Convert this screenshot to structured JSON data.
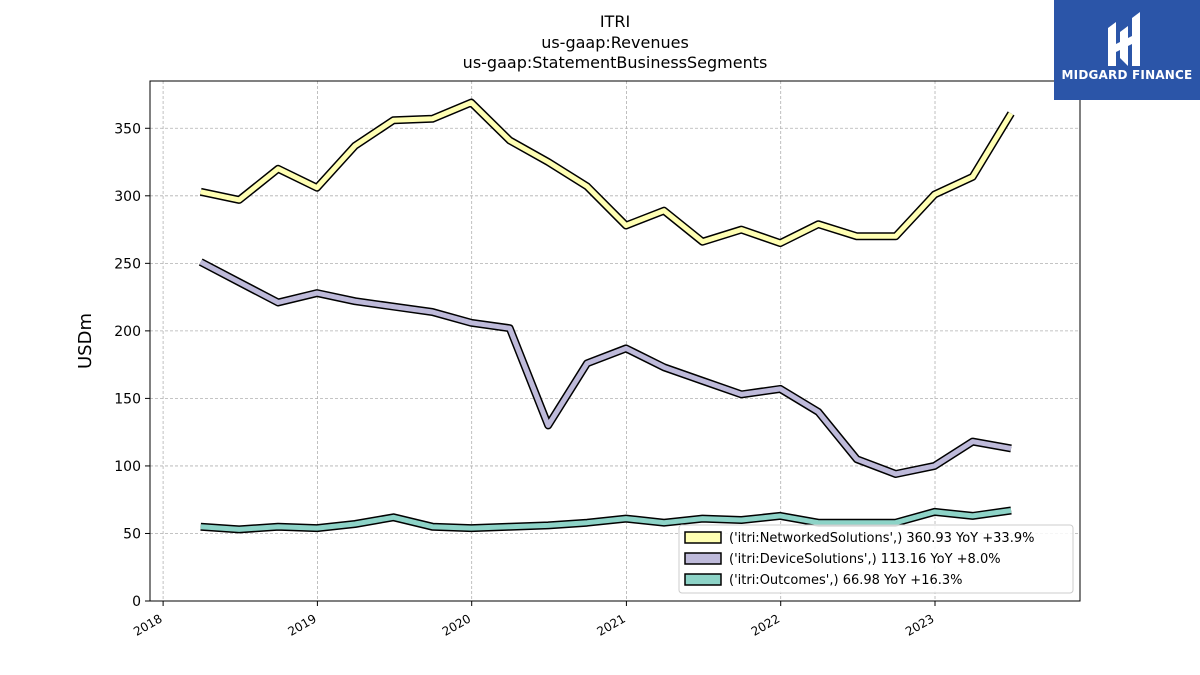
{
  "chart_data": {
    "type": "line",
    "title": [
      "ITRI",
      "us-gaap:Revenues",
      "us-gaap:StatementBusinessSegments"
    ],
    "xlabel": "",
    "ylabel": "USDm",
    "ylim": [
      0,
      385
    ],
    "xlim": [
      "2017-12-01",
      "2023-12-10"
    ],
    "yticks": [
      0,
      50,
      100,
      150,
      200,
      250,
      300,
      350
    ],
    "xticks": [
      "2018-01-01",
      "2019-01-01",
      "2020-01-01",
      "2021-01-01",
      "2022-01-01",
      "2023-01-01"
    ],
    "xtick_labels": [
      "2018",
      "2019",
      "2020",
      "2021",
      "2022",
      "2023"
    ],
    "grid": true,
    "legend_position": "lower-right",
    "x": [
      "2018-03-31",
      "2018-06-30",
      "2018-09-30",
      "2018-12-31",
      "2019-03-31",
      "2019-06-30",
      "2019-09-30",
      "2019-12-31",
      "2020-03-31",
      "2020-06-30",
      "2020-09-30",
      "2020-12-31",
      "2021-03-31",
      "2021-06-30",
      "2021-09-30",
      "2021-12-31",
      "2022-03-31",
      "2022-06-30",
      "2022-09-30",
      "2022-12-31",
      "2023-03-31",
      "2023-06-30"
    ],
    "series": [
      {
        "name": "('itri:NetworkedSolutions',) 360.93 YoY +33.9%",
        "color": "#ffffb3",
        "values": [
          303,
          297,
          320,
          306,
          337,
          356,
          357,
          369,
          341,
          325,
          307,
          278,
          289,
          266,
          275,
          265,
          279,
          270,
          270,
          301,
          314,
          361
        ]
      },
      {
        "name": "('itri:DeviceSolutions',) 113.16 YoY +8.0%",
        "color": "#bebada",
        "values": [
          251,
          236,
          221,
          228,
          222,
          218,
          214,
          206,
          202,
          130,
          176,
          187,
          173,
          163,
          153,
          157,
          140,
          105,
          94,
          100,
          118,
          113
        ]
      },
      {
        "name": "('itri:Outcomes',) 66.98 YoY +16.3%",
        "color": "#8dd3c7",
        "values": [
          55,
          53,
          55,
          54,
          57,
          62,
          55,
          54,
          55,
          56,
          58,
          61,
          58,
          61,
          60,
          63,
          58,
          58,
          58,
          66,
          63,
          67
        ]
      }
    ]
  },
  "logo": {
    "text": "MIDGARD FINANCE"
  }
}
